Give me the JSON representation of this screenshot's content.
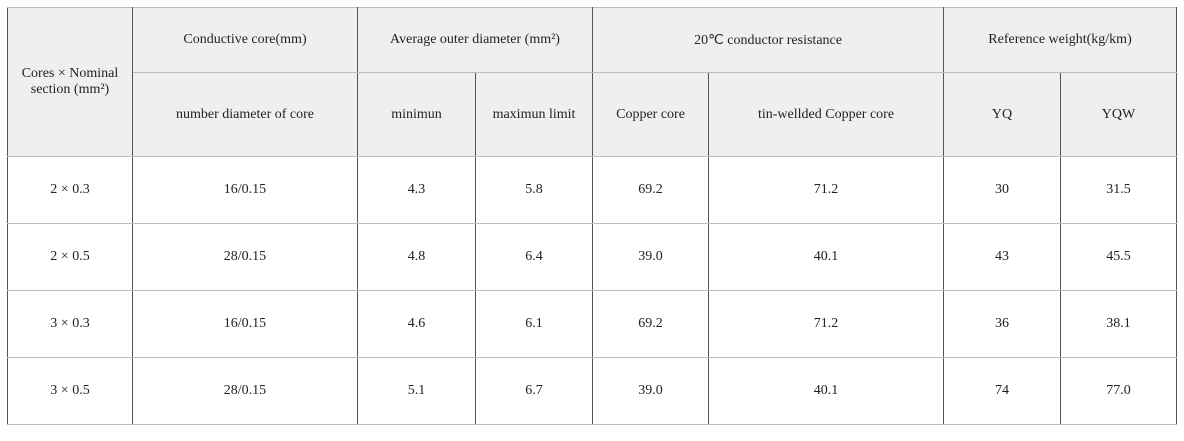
{
  "table": {
    "header": {
      "row1": [
        "Cores × Nominal section (mm²)",
        "Conductive core(mm)",
        "Average outer diameter (mm²)",
        "20℃ conductor resistance",
        "Reference weight(kg/km)"
      ],
      "row2": [
        "number diameter of core",
        "minimun",
        "maximun limit",
        "Copper core",
        "tin-wellded Copper core",
        "YQ",
        "YQW"
      ]
    },
    "rows": [
      [
        "2 × 0.3",
        "16/0.15",
        "4.3",
        "5.8",
        "69.2",
        "71.2",
        "30",
        "31.5"
      ],
      [
        "2 × 0.5",
        "28/0.15",
        "4.8",
        "6.4",
        "39.0",
        "40.1",
        "43",
        "45.5"
      ],
      [
        "3 × 0.3",
        "16/0.15",
        "4.6",
        "6.1",
        "69.2",
        "71.2",
        "36",
        "38.1"
      ],
      [
        "3 × 0.5",
        "28/0.15",
        "5.1",
        "6.7",
        "39.0",
        "40.1",
        "74",
        "77.0"
      ]
    ]
  }
}
